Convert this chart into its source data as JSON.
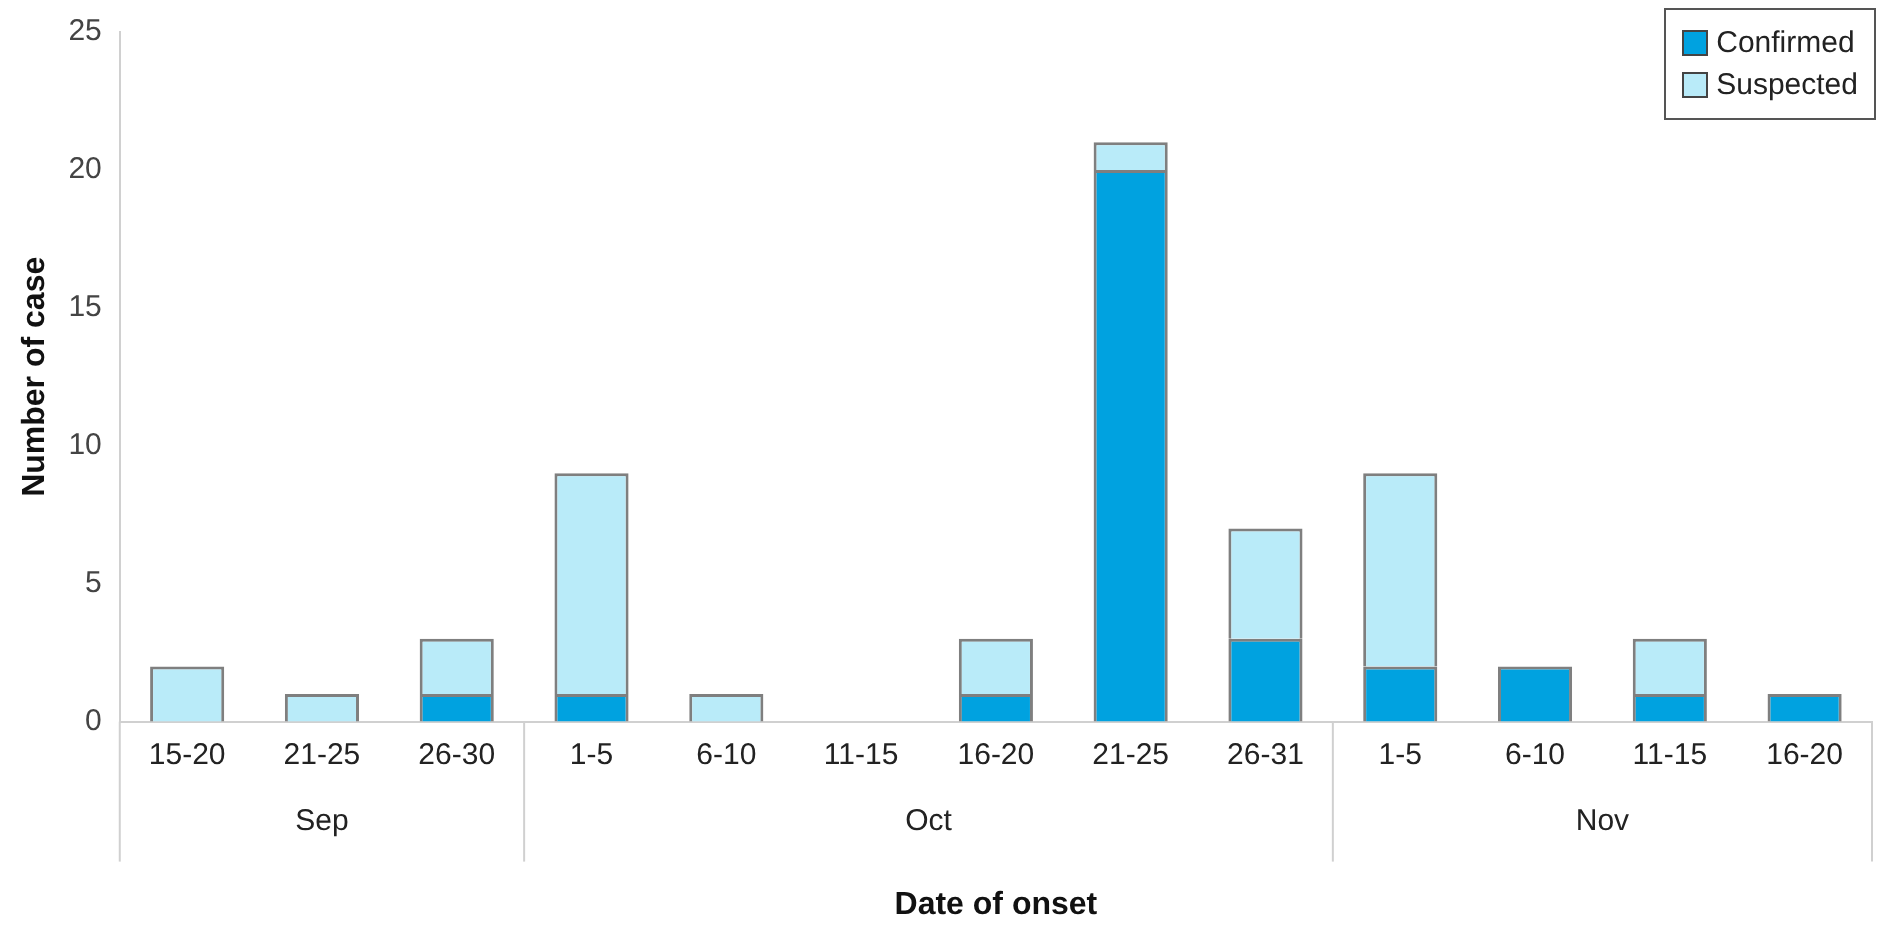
{
  "chart_data": {
    "type": "bar",
    "stacked": true,
    "xlabel": "Date of onset",
    "ylabel": "Number of case",
    "categories": [
      "15-20",
      "21-25",
      "26-30",
      "1-5",
      "6-10",
      "11-15",
      "16-20",
      "21-25",
      "26-31",
      "1-5",
      "6-10",
      "11-15",
      "16-20"
    ],
    "annotations": [
      "Sep",
      "Oct",
      "Nov"
    ],
    "series": [
      {
        "name": "Confirmed",
        "color": "#00a2e0",
        "values": [
          0,
          0,
          1,
          1,
          0,
          0,
          1,
          20,
          3,
          2,
          2,
          1,
          1
        ]
      },
      {
        "name": "Suspected",
        "color": "#b9ebf9",
        "values": [
          2,
          1,
          2,
          8,
          1,
          0,
          2,
          1,
          4,
          7,
          0,
          2,
          0
        ]
      }
    ],
    "ylim": [
      0,
      25
    ],
    "yticks": [
      0,
      5,
      10,
      15,
      20,
      25
    ],
    "grid": false,
    "legend": "top right"
  }
}
